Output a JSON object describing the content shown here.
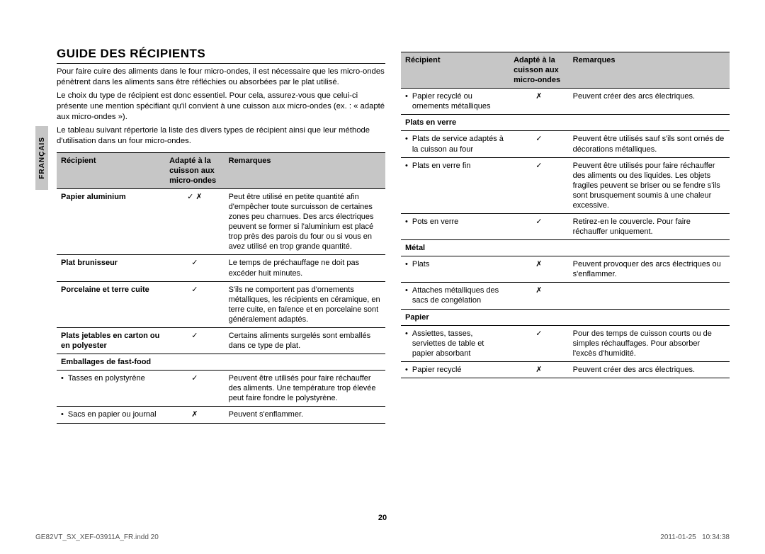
{
  "tab_label": "FRANÇAIS",
  "title": "GUIDE DES RÉCIPIENTS",
  "intro": [
    "Pour faire cuire des aliments dans le four micro-ondes, il est nécessaire que les micro-ondes pénètrent dans les aliments sans être réfléchies ou absorbées par le plat utilisé.",
    "Le choix du type de récipient est donc essentiel. Pour cela, assurez-vous que celui-ci présente une mention spécifiant qu'il convient à une cuisson aux micro-ondes (ex. : « adapté aux micro-ondes »).",
    "Le tableau suivant répertorie la liste des divers types de récipient ainsi que leur méthode d'utilisation dans un four micro-ondes."
  ],
  "headers": {
    "c1": "Récipient",
    "c2": "Adapté à la cuisson aux micro-ondes",
    "c3": "Remarques"
  },
  "left_rows": [
    {
      "t": "sh",
      "l": "Papier aluminium",
      "m": "✓ ✗",
      "r": "Peut être utilisé en petite quantité afin d'empêcher toute surcuisson de certaines zones peu charnues. Des arcs électriques peuvent se former si l'aluminium est placé trop près des parois du four ou si vous en avez utilisé en trop grande quantité."
    },
    {
      "t": "sh",
      "l": "Plat brunisseur",
      "m": "✓",
      "r": "Le temps de préchauffage ne doit pas excéder huit minutes."
    },
    {
      "t": "sh",
      "l": "Porcelaine et terre cuite",
      "m": "✓",
      "r": "S'ils ne comportent pas d'ornements métalliques, les récipients en céramique, en terre cuite, en faïence et en porcelaine sont généralement adaptés."
    },
    {
      "t": "sh",
      "l": "Plats jetables en carton ou en polyester",
      "m": "✓",
      "r": "Certains aliments surgelés sont emballés dans ce type de plat."
    },
    {
      "t": "sh",
      "l": "Emballages de fast-food",
      "m": "",
      "r": ""
    },
    {
      "t": "b",
      "l": "Tasses en polystyrène",
      "m": "✓",
      "r": "Peuvent être utilisés pour faire réchauffer des aliments. Une température trop élevée peut faire fondre le polystyrène."
    },
    {
      "t": "b",
      "l": "Sacs en papier ou journal",
      "m": "✗",
      "r": "Peuvent s'enflammer."
    }
  ],
  "right_rows": [
    {
      "t": "b",
      "l": "Papier recyclé ou ornements métalliques",
      "m": "✗",
      "r": "Peuvent créer des arcs électriques."
    },
    {
      "t": "sh",
      "l": "Plats en verre",
      "m": "",
      "r": ""
    },
    {
      "t": "b",
      "l": "Plats de service adaptés à la cuisson au four",
      "m": "✓",
      "r": "Peuvent être utilisés sauf s'ils sont ornés de décorations métalliques."
    },
    {
      "t": "b",
      "l": "Plats en verre fin",
      "m": "✓",
      "r": "Peuvent être utilisés pour faire réchauffer des aliments ou des liquides. Les objets fragiles peuvent se briser ou se fendre s'ils sont brusquement soumis à une chaleur excessive."
    },
    {
      "t": "b",
      "l": "Pots en verre",
      "m": "✓",
      "r": "Retirez-en le couvercle. Pour faire réchauffer uniquement."
    },
    {
      "t": "sh",
      "l": "Métal",
      "m": "",
      "r": ""
    },
    {
      "t": "b",
      "l": "Plats",
      "m": "✗",
      "r": "Peuvent provoquer des arcs électriques ou s'enflammer."
    },
    {
      "t": "b",
      "l": "Attaches métalliques des sacs de congélation",
      "m": "✗",
      "r": ""
    },
    {
      "t": "sh",
      "l": "Papier",
      "m": "",
      "r": ""
    },
    {
      "t": "b",
      "l": "Assiettes, tasses, serviettes de table et papier absorbant",
      "m": "✓",
      "r": "Pour des temps de cuisson courts ou de simples réchauffages. Pour absorber l'excès d'humidité."
    },
    {
      "t": "b",
      "l": "Papier recyclé",
      "m": "✗",
      "r": "Peuvent créer des arcs électriques."
    }
  ],
  "page_number": "20",
  "footer": {
    "file": "GE82VT_SX_XEF-03911A_FR.indd   20",
    "date": "2011-01-25",
    "time": "10:34:38"
  }
}
